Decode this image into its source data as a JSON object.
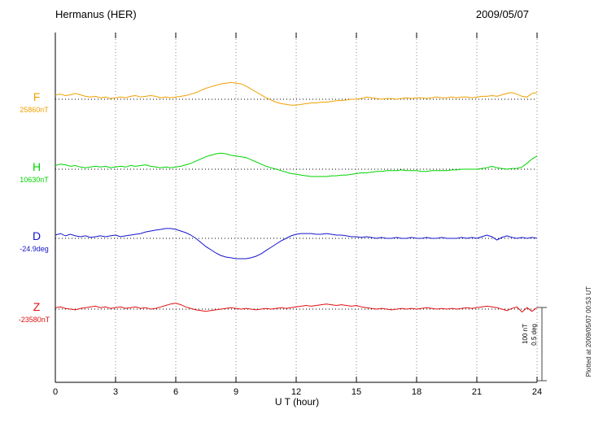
{
  "header": {
    "station": "Hermanus (HER)",
    "date": "2009/05/07"
  },
  "xlabel": "U T (hour)",
  "plotted_note": "Plotted at 2009/05/07 00:53 UT",
  "scalebar": {
    "labels": [
      "100 nT",
      "0.5 deg"
    ]
  },
  "colors": {
    "axis": "#000000",
    "grid": "#888888",
    "baseline": "#000000"
  },
  "chart_data": {
    "type": "line",
    "title": "Hermanus (HER)",
    "subtitle": "2009/05/07",
    "xlabel": "U T (hour)",
    "x_range": [
      0,
      24
    ],
    "x_ticks": [
      0,
      3,
      6,
      9,
      12,
      15,
      18,
      21,
      24
    ],
    "x_step_hours": 0.25,
    "grid": "dotted-vertical-at-ticks",
    "scale": {
      "nT_per_div": 100,
      "deg_per_div": 0.5
    },
    "series": [
      {
        "name": "F",
        "label": "F",
        "baseline_label": "25860nT",
        "units": "nT",
        "color": "#f0a000",
        "values": [
          6,
          7,
          5,
          6,
          8,
          6,
          4,
          3,
          4,
          2,
          3,
          1,
          2,
          3,
          2,
          4,
          5,
          3,
          4,
          5,
          4,
          2,
          3,
          2,
          3,
          4,
          5,
          7,
          9,
          12,
          15,
          17,
          19,
          21,
          22,
          23,
          22,
          21,
          18,
          14,
          10,
          6,
          2,
          -1,
          -4,
          -6,
          -7,
          -8,
          -8,
          -7,
          -6,
          -5,
          -5,
          -4,
          -4,
          -3,
          -2,
          -2,
          -1,
          0,
          0,
          1,
          3,
          2,
          1,
          0,
          1,
          1,
          0,
          1,
          2,
          1,
          2,
          2,
          1,
          2,
          3,
          2,
          2,
          3,
          2,
          3,
          3,
          2,
          3,
          4,
          4,
          5,
          4,
          6,
          8,
          9,
          7,
          4,
          3,
          8,
          9
        ]
      },
      {
        "name": "H",
        "label": "H",
        "baseline_label": "10630nT",
        "units": "nT",
        "color": "#00d400",
        "values": [
          5,
          7,
          6,
          4,
          5,
          3,
          2,
          3,
          4,
          3,
          4,
          2,
          3,
          4,
          3,
          5,
          4,
          5,
          6,
          4,
          3,
          2,
          3,
          2,
          3,
          4,
          6,
          8,
          11,
          14,
          17,
          19,
          21,
          22,
          21,
          19,
          18,
          17,
          16,
          13,
          10,
          7,
          4,
          2,
          0,
          -2,
          -4,
          -6,
          -7,
          -8,
          -9,
          -10,
          -10,
          -10,
          -10,
          -9,
          -9,
          -8,
          -8,
          -7,
          -6,
          -5,
          -5,
          -4,
          -3,
          -3,
          -2,
          -2,
          -2,
          -1,
          -2,
          -2,
          -2,
          -3,
          -3,
          -2,
          -2,
          -2,
          -2,
          -1,
          -1,
          0,
          0,
          0,
          0,
          1,
          2,
          4,
          2,
          1,
          0,
          1,
          1,
          3,
          8,
          14,
          18
        ]
      },
      {
        "name": "D",
        "label": "D",
        "baseline_label": "-24.9deg",
        "units": "deg",
        "color": "#1414cc",
        "values": [
          0.022,
          0.033,
          0.017,
          0.028,
          0.017,
          0.011,
          0.017,
          0.006,
          0.011,
          0.017,
          0.011,
          0.017,
          0.022,
          0.011,
          0.017,
          0.022,
          0.028,
          0.033,
          0.044,
          0.05,
          0.056,
          0.061,
          0.067,
          0.067,
          0.061,
          0.05,
          0.039,
          0.022,
          0,
          -0.028,
          -0.056,
          -0.078,
          -0.1,
          -0.117,
          -0.128,
          -0.133,
          -0.139,
          -0.139,
          -0.139,
          -0.133,
          -0.122,
          -0.106,
          -0.083,
          -0.061,
          -0.039,
          -0.017,
          0,
          0.017,
          0.028,
          0.033,
          0.033,
          0.033,
          0.028,
          0.028,
          0.033,
          0.028,
          0.022,
          0.022,
          0.017,
          0.011,
          0.011,
          0.006,
          0.011,
          0.006,
          0,
          0.006,
          0,
          0,
          0.006,
          0,
          0,
          0.006,
          0,
          0,
          0.006,
          0,
          0,
          0.006,
          0,
          0,
          0,
          0.006,
          0,
          0.006,
          0,
          0.011,
          0.022,
          0.011,
          -0.011,
          0.006,
          0.017,
          0.006,
          0,
          0.006,
          0,
          0.006,
          0
        ]
      },
      {
        "name": "Z",
        "label": "Z",
        "baseline_label": "-23580nT",
        "units": "nT",
        "color": "#e01010",
        "values": [
          2,
          3,
          1,
          0,
          -1,
          1,
          2,
          3,
          4,
          2,
          3,
          1,
          2,
          3,
          1,
          2,
          3,
          1,
          2,
          0,
          1,
          3,
          5,
          7,
          8,
          6,
          3,
          1,
          -1,
          -2,
          -3,
          -2,
          -1,
          0,
          1,
          2,
          1,
          0,
          1,
          0,
          -1,
          0,
          1,
          0,
          1,
          2,
          1,
          2,
          3,
          4,
          5,
          4,
          5,
          6,
          7,
          6,
          5,
          6,
          5,
          4,
          5,
          3,
          2,
          1,
          0,
          1,
          0,
          -1,
          0,
          1,
          0,
          1,
          0,
          1,
          2,
          1,
          0,
          1,
          0,
          1,
          0,
          1,
          2,
          1,
          2,
          3,
          4,
          3,
          2,
          0,
          -2,
          1,
          3,
          -4,
          2,
          -3,
          2
        ]
      }
    ]
  }
}
